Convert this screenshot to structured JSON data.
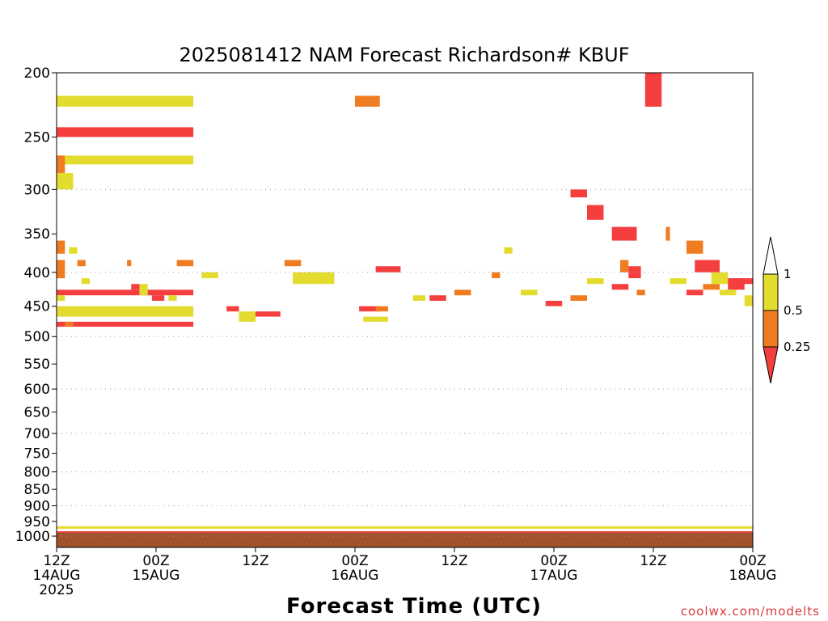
{
  "chart_data": {
    "type": "heatmap",
    "title": "2025081412 NAM Forecast Richardson# KBUF",
    "xlabel": "Forecast Time (UTC)",
    "ylabel": "",
    "y_axis": {
      "scale": "pressure",
      "unit": "hPa",
      "range": [
        200,
        1000
      ],
      "ticks": [
        200,
        250,
        300,
        350,
        400,
        450,
        500,
        550,
        600,
        650,
        700,
        750,
        800,
        850,
        900,
        950,
        1000
      ],
      "dotted_gridlines": [
        300,
        400,
        500,
        600,
        700,
        800,
        900,
        1000
      ]
    },
    "x_axis": {
      "range": [
        "2025-08-14 12Z",
        "2025-08-18 00Z"
      ],
      "ticks": [
        {
          "hour": 0,
          "line1": "12Z",
          "line2": "14AUG",
          "line3": "2025"
        },
        {
          "hour": 12,
          "line1": "00Z",
          "line2": "15AUG",
          "line3": ""
        },
        {
          "hour": 24,
          "line1": "12Z",
          "line2": "",
          "line3": ""
        },
        {
          "hour": 36,
          "line1": "00Z",
          "line2": "16AUG",
          "line3": ""
        },
        {
          "hour": 48,
          "line1": "12Z",
          "line2": "",
          "line3": ""
        },
        {
          "hour": 60,
          "line1": "00Z",
          "line2": "17AUG",
          "line3": ""
        },
        {
          "hour": 72,
          "line1": "12Z",
          "line2": "",
          "line3": ""
        },
        {
          "hour": 84,
          "line1": "00Z",
          "line2": "18AUG",
          "line3": ""
        }
      ]
    },
    "legend": {
      "placement": "right",
      "levels": [
        {
          "label": "1",
          "value": 1
        },
        {
          "label": "0.5",
          "value": 0.5
        },
        {
          "label": "0.25",
          "value": 0.25
        }
      ],
      "colors": {
        "lt_025": "#f53f3f",
        "025_05": "#f07c22",
        "05_1": "#e3dc2f",
        "below_ground": "#a0522d",
        "frame": "#000000"
      }
    },
    "surface_pressure_hpa": 988,
    "bins": [
      "lt_025",
      "025_05",
      "05_1"
    ],
    "cells": [
      [
        0,
        16.5,
        1,
        2,
        2
      ],
      [
        0,
        16.5,
        1,
        5,
        0
      ],
      [
        0,
        16.5,
        1,
        8,
        2
      ],
      [
        0,
        1,
        2,
        19,
        1
      ],
      [
        1.5,
        2.5,
        1,
        20,
        2
      ],
      [
        2.5,
        3.5,
        1,
        22,
        1
      ],
      [
        0,
        16.5,
        1,
        27,
        0
      ],
      [
        0,
        16.5,
        2,
        30,
        2
      ],
      [
        0,
        16.5,
        1,
        33,
        0
      ],
      [
        14.5,
        16.5,
        1,
        22,
        1
      ],
      [
        17.5,
        19.5,
        1,
        24,
        2
      ],
      [
        27.5,
        29.5,
        1,
        22,
        1
      ],
      [
        28.5,
        33.5,
        2,
        24,
        2
      ],
      [
        36,
        39,
        1,
        2,
        1
      ],
      [
        38.5,
        41.5,
        1,
        23,
        0
      ],
      [
        52.5,
        53.5,
        1,
        24,
        1
      ],
      [
        54,
        55,
        1,
        20,
        2
      ],
      [
        62,
        64,
        1,
        12,
        0
      ],
      [
        64,
        66,
        2,
        14,
        0
      ],
      [
        67,
        70,
        2,
        17,
        0
      ],
      [
        68,
        69,
        2,
        22,
        1
      ],
      [
        69,
        70.5,
        2,
        23,
        0
      ],
      [
        71,
        73,
        3,
        0,
        0
      ],
      [
        73.5,
        74,
        2,
        17,
        1
      ],
      [
        76,
        78,
        2,
        19,
        1
      ],
      [
        77,
        80,
        2,
        22,
        0
      ],
      [
        79,
        81,
        2,
        24,
        2
      ],
      [
        81,
        83,
        2,
        25,
        0
      ],
      [
        83,
        84,
        2,
        28,
        2
      ],
      [
        0,
        84,
        1,
        96,
        0
      ],
      [
        0,
        84,
        1,
        94,
        0
      ],
      [
        0,
        84,
        1,
        92,
        2
      ],
      [
        0,
        1,
        2,
        8,
        1
      ],
      [
        0,
        2,
        2,
        10,
        2
      ],
      [
        0,
        1,
        3,
        22,
        1
      ],
      [
        0,
        1,
        1,
        28,
        2
      ],
      [
        1,
        2,
        1,
        33,
        1
      ],
      [
        3,
        4,
        1,
        25,
        2
      ],
      [
        8.5,
        9,
        1,
        22,
        1
      ],
      [
        9,
        10,
        1,
        26,
        0
      ],
      [
        10,
        11,
        2,
        26,
        2
      ],
      [
        11.5,
        13,
        1,
        28,
        0
      ],
      [
        13.5,
        14.5,
        1,
        28,
        2
      ],
      [
        20.5,
        22,
        1,
        30,
        0
      ],
      [
        22,
        24,
        2,
        31,
        2
      ],
      [
        24,
        27,
        1,
        31,
        0
      ],
      [
        36.5,
        39,
        1,
        30,
        0
      ],
      [
        37,
        40,
        1,
        32,
        2
      ],
      [
        38.5,
        40,
        1,
        30,
        1
      ],
      [
        43,
        44.5,
        1,
        28,
        2
      ],
      [
        45,
        47,
        1,
        28,
        0
      ],
      [
        48,
        50,
        1,
        27,
        1
      ],
      [
        56,
        58,
        1,
        27,
        2
      ],
      [
        59,
        61,
        1,
        29,
        0
      ],
      [
        62,
        64,
        1,
        28,
        1
      ],
      [
        64,
        66,
        1,
        25,
        2
      ],
      [
        67,
        69,
        1,
        26,
        0
      ],
      [
        70,
        71,
        1,
        27,
        1
      ],
      [
        74,
        76,
        1,
        25,
        2
      ],
      [
        76,
        78,
        1,
        27,
        0
      ],
      [
        78,
        80,
        1,
        26,
        1
      ],
      [
        80,
        82,
        1,
        27,
        2
      ],
      [
        82,
        84,
        1,
        25,
        0
      ]
    ]
  },
  "credit": "coolwx.com/modelts"
}
